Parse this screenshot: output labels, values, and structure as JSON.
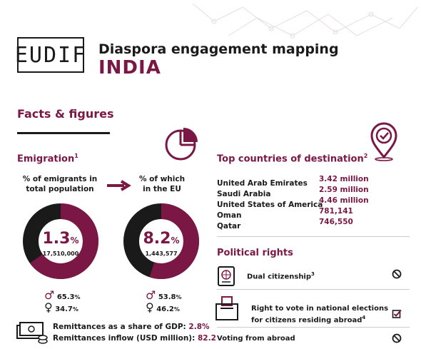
{
  "header": {
    "logo_text": "EUDIF",
    "title": "Diaspora engagement mapping",
    "country": "INDIA"
  },
  "facts_heading": "Facts & figures",
  "emigration": {
    "heading": "Emigration",
    "footnote": "1",
    "left_chart": {
      "label_line1": "% of emigrants in",
      "label_line2": "total population",
      "percent": "1.3",
      "percent_sign": "%",
      "count": "17,510,000",
      "fraction": 0.65
    },
    "right_chart": {
      "label_line1": "% of which",
      "label_line2": "in the EU",
      "percent": "8.2",
      "percent_sign": "%",
      "count": "1,443,577",
      "fraction": 0.55
    },
    "left_gender": {
      "male": "65.3",
      "female": "34.7",
      "unit": "%"
    },
    "right_gender": {
      "male": "53.8",
      "female": "46.2",
      "unit": "%"
    }
  },
  "remittances": {
    "gdp_label": "Remittances as a share of GDP:",
    "gdp_value": "2.8%",
    "inflow_label": "Remittances inflow (USD million):",
    "inflow_value": "82.2"
  },
  "destinations": {
    "heading": "Top countries of destination",
    "footnote": "2",
    "rows": [
      {
        "country": "United Arab Emirates",
        "value": "3.42 million"
      },
      {
        "country": "Saudi Arabia",
        "value": "2.59 million"
      },
      {
        "country": "United States of America",
        "value": "4.46 million"
      },
      {
        "country": "Oman",
        "value": "781,141"
      },
      {
        "country": "Qatar",
        "value": "746,550"
      }
    ]
  },
  "rights": {
    "heading": "Political rights",
    "dual": {
      "label": "Dual citizenship",
      "footnote": "3"
    },
    "vote_abroad_line1": "Right to vote in national elections",
    "vote_abroad_line2": "for citizens residing abroad",
    "vote_footnote": "4",
    "voting_from_abroad": "Voting from abroad"
  },
  "colors": {
    "accent": "#7a1745",
    "dark": "#1a1a1a"
  }
}
